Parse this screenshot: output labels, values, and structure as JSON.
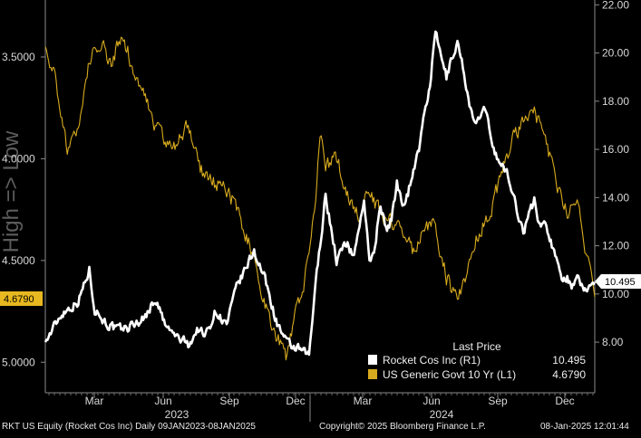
{
  "chart_data": {
    "type": "line",
    "axis_direction_label": "High => Low",
    "x_months": [
      "Mar",
      "Jun",
      "Sep",
      "Dec",
      "Mar",
      "Jun",
      "Sep",
      "Dec"
    ],
    "x_years": [
      "2023",
      "2024"
    ],
    "left_axis": {
      "ticks": [
        "3.5000",
        "4.0000",
        "4.5000",
        "5.0000"
      ],
      "inverted": true,
      "range": [
        3.22,
        5.15
      ]
    },
    "right_axis": {
      "ticks": [
        "8.00",
        "10.00",
        "12.00",
        "14.00",
        "16.00",
        "18.00",
        "20.00",
        "22.00"
      ],
      "range": [
        5.9,
        22.2
      ]
    },
    "last_values": {
      "rocket": "10.495",
      "govt10y": "4.6790"
    },
    "series": [
      {
        "name": "Rocket Cos Inc (R1)",
        "axis": "right",
        "color": "#ffffff",
        "x": [
          0,
          3,
          6,
          8,
          9,
          11,
          13,
          15,
          18,
          20,
          22,
          24,
          26,
          28,
          29,
          31,
          33,
          35,
          36,
          38,
          40,
          42,
          44,
          46,
          48,
          49,
          51,
          53,
          55,
          56,
          57,
          58,
          59,
          60,
          61,
          62,
          63,
          64,
          65,
          66,
          67,
          68,
          69,
          70,
          71,
          73,
          75,
          76,
          77,
          78,
          80,
          82,
          84,
          85,
          87,
          89,
          90,
          91,
          92,
          93,
          94,
          95,
          96,
          97,
          98,
          99,
          100
        ],
        "y": [
          8.0,
          9.2,
          9.7,
          11.0,
          9.4,
          8.8,
          8.5,
          8.6,
          9.0,
          9.8,
          8.6,
          8.2,
          7.9,
          8.6,
          8.2,
          9.3,
          8.7,
          10.4,
          10.8,
          11.8,
          10.6,
          8.9,
          7.9,
          7.7,
          7.4,
          10.0,
          14.1,
          11.4,
          12.2,
          11.5,
          12.6,
          14.0,
          11.2,
          12.0,
          13.8,
          12.6,
          13.1,
          14.6,
          13.8,
          14.2,
          15.2,
          16.0,
          17.4,
          18.7,
          20.8,
          19.0,
          20.5,
          19.4,
          18.2,
          17.0,
          17.6,
          15.8,
          15.0,
          14.2,
          12.6,
          13.9,
          12.8,
          13.0,
          12.2,
          11.4,
          10.8,
          10.7,
          10.3,
          10.6,
          10.1,
          10.4,
          10.495
        ]
      },
      {
        "name": "US Generic Govt 10 Yr (L1)",
        "axis": "left",
        "color": "#d8ab1e",
        "x": [
          0,
          2,
          4,
          6,
          8,
          10,
          12,
          14,
          16,
          18,
          20,
          22,
          24,
          26,
          28,
          30,
          32,
          34,
          36,
          38,
          40,
          42,
          44,
          45,
          47,
          49,
          50,
          51,
          53,
          55,
          57,
          59,
          61,
          63,
          65,
          67,
          69,
          71,
          73,
          75,
          77,
          79,
          81,
          83,
          85,
          87,
          89,
          91,
          93,
          95,
          97,
          98,
          99,
          100
        ],
        "y": [
          3.45,
          3.62,
          3.95,
          3.85,
          3.52,
          3.42,
          3.53,
          3.38,
          3.56,
          3.7,
          3.84,
          3.93,
          3.92,
          3.82,
          4.05,
          4.11,
          4.13,
          4.2,
          4.33,
          4.49,
          4.72,
          4.87,
          4.98,
          4.82,
          4.62,
          4.27,
          3.87,
          4.03,
          4.0,
          4.18,
          4.29,
          4.16,
          4.27,
          4.32,
          4.33,
          4.46,
          4.34,
          4.33,
          4.58,
          4.71,
          4.55,
          4.35,
          4.28,
          4.07,
          3.91,
          3.81,
          3.77,
          3.9,
          4.12,
          4.28,
          4.2,
          4.44,
          4.53,
          4.679
        ]
      }
    ],
    "legend_title": "Last Price",
    "legend": [
      {
        "label": "Rocket Cos Inc  (R1)",
        "value": "10.495"
      },
      {
        "label": "US Generic Govt 10 Yr  (L1)",
        "value": "4.6790"
      }
    ]
  },
  "footer": {
    "ticker": "RKT US Equity (Rocket Cos Inc)  Daily 09JAN2023-08JAN2025",
    "copyright": "Copyright© 2025 Bloomberg Finance L.P.",
    "timestamp": "08-Jan-2025 12:01:44"
  }
}
